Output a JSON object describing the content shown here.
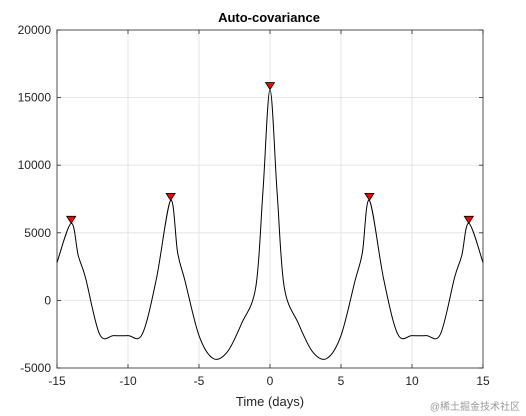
{
  "chart_data": {
    "type": "line",
    "title": "Auto-covariance",
    "xlabel": "Time (days)",
    "ylabel": "",
    "xlim": [
      -15,
      15
    ],
    "ylim": [
      -5000,
      20000
    ],
    "x_ticks": [
      -15,
      -10,
      -5,
      0,
      5,
      10,
      15
    ],
    "y_ticks": [
      -5000,
      0,
      5000,
      10000,
      15000,
      20000
    ],
    "grid": true,
    "colors": {
      "line": "#000000",
      "marker_fill": "#ff0000",
      "marker_edge": "#000000",
      "grid": "#e0e0e0",
      "axes": "#262626"
    },
    "peak_markers": {
      "shape": "triangle-down",
      "x": [
        -14,
        -7,
        0,
        7,
        14
      ],
      "y": [
        5700,
        7400,
        15600,
        7400,
        5700
      ]
    },
    "series": [
      {
        "x": [
          -15,
          -14,
          -13.5,
          -13,
          -12,
          -11,
          -10,
          -9,
          -8,
          -7,
          -6.5,
          -6,
          -5,
          -4,
          -3,
          -2,
          -1,
          -0.5,
          0,
          0.5,
          1,
          2,
          3,
          4,
          5,
          6,
          6.5,
          7,
          8,
          9,
          10,
          11,
          12,
          13,
          13.5,
          14,
          15
        ],
        "y": [
          2800,
          5700,
          3300,
          1700,
          -2500,
          -2600,
          -2600,
          -2500,
          1600,
          7400,
          3500,
          1500,
          -2600,
          -4300,
          -3800,
          -1700,
          1000,
          8000,
          15600,
          8000,
          1000,
          -1700,
          -3800,
          -4300,
          -2600,
          1500,
          3500,
          7400,
          1600,
          -2500,
          -2600,
          -2600,
          -2500,
          1700,
          3300,
          5700,
          2800
        ]
      }
    ]
  },
  "watermark": "@稀土掘金技术社区"
}
